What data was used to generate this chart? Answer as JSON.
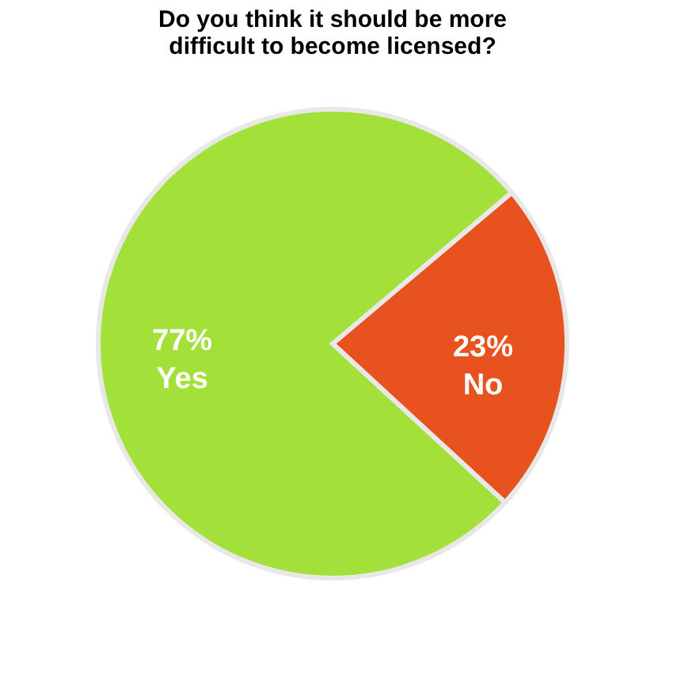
{
  "chart_data": {
    "type": "pie",
    "title": "Do you think it should be more difficult to become licensed?",
    "categories": [
      "No",
      "Yes"
    ],
    "values": [
      23,
      77
    ],
    "value_labels": [
      "23%",
      "77%"
    ],
    "colors": [
      "#e8521e",
      "#a3e03a"
    ],
    "legend": false
  }
}
